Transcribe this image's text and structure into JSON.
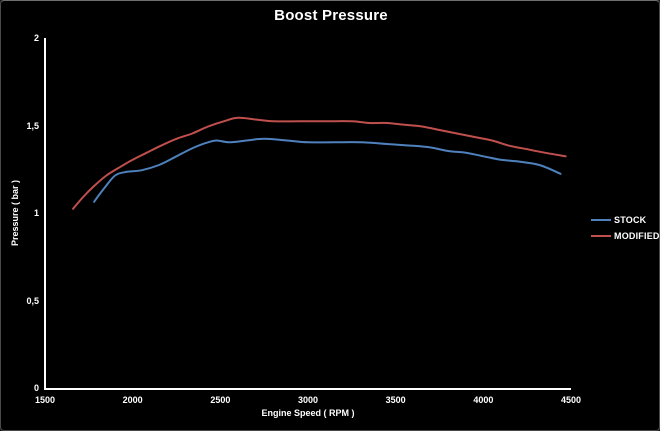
{
  "title": "Boost Pressure",
  "colors": {
    "background": "#000000",
    "text": "#ffffff",
    "axis": "#ffffff",
    "stock_line": "#4f81bd",
    "modified_line": "#c0504d"
  },
  "legend": {
    "items": [
      {
        "label": "STOCK",
        "color": "#4f81bd"
      },
      {
        "label": "MODIFIED",
        "color": "#c0504d"
      }
    ]
  },
  "chart_data": {
    "type": "line",
    "title": "Boost Pressure",
    "xlabel": "Engine Speed ( RPM )",
    "ylabel": "Pressure ( bar )",
    "x_range": [
      1500,
      4500
    ],
    "y_range": [
      0,
      2
    ],
    "grid": false,
    "legend_position": "right",
    "x_ticks": [
      {
        "value": 1500,
        "label": "1500"
      },
      {
        "value": 2000,
        "label": "2000"
      },
      {
        "value": 2500,
        "label": "2500"
      },
      {
        "value": 3000,
        "label": "3000"
      },
      {
        "value": 3500,
        "label": "3500"
      },
      {
        "value": 4000,
        "label": "4000"
      },
      {
        "value": 4500,
        "label": "4500"
      }
    ],
    "y_ticks": [
      {
        "value": 0,
        "label": "0"
      },
      {
        "value": 0.5,
        "label": "0,5"
      },
      {
        "value": 1,
        "label": "1"
      },
      {
        "value": 1.5,
        "label": "1,5"
      },
      {
        "value": 2,
        "label": "2"
      }
    ],
    "series": [
      {
        "name": "STOCK",
        "color": "#4f81bd",
        "points": [
          [
            1780,
            1.07
          ],
          [
            1840,
            1.15
          ],
          [
            1900,
            1.22
          ],
          [
            1960,
            1.24
          ],
          [
            2050,
            1.25
          ],
          [
            2150,
            1.28
          ],
          [
            2250,
            1.33
          ],
          [
            2350,
            1.38
          ],
          [
            2430,
            1.41
          ],
          [
            2480,
            1.42
          ],
          [
            2550,
            1.41
          ],
          [
            2650,
            1.42
          ],
          [
            2750,
            1.43
          ],
          [
            2880,
            1.42
          ],
          [
            3000,
            1.41
          ],
          [
            3150,
            1.41
          ],
          [
            3300,
            1.41
          ],
          [
            3450,
            1.4
          ],
          [
            3600,
            1.39
          ],
          [
            3700,
            1.38
          ],
          [
            3800,
            1.36
          ],
          [
            3900,
            1.35
          ],
          [
            4000,
            1.33
          ],
          [
            4100,
            1.31
          ],
          [
            4200,
            1.3
          ],
          [
            4320,
            1.28
          ],
          [
            4440,
            1.23
          ]
        ]
      },
      {
        "name": "MODIFIED",
        "color": "#c0504d",
        "points": [
          [
            1660,
            1.03
          ],
          [
            1720,
            1.1
          ],
          [
            1780,
            1.16
          ],
          [
            1850,
            1.22
          ],
          [
            1930,
            1.27
          ],
          [
            2000,
            1.31
          ],
          [
            2080,
            1.35
          ],
          [
            2160,
            1.39
          ],
          [
            2250,
            1.43
          ],
          [
            2340,
            1.46
          ],
          [
            2430,
            1.5
          ],
          [
            2520,
            1.53
          ],
          [
            2600,
            1.55
          ],
          [
            2700,
            1.54
          ],
          [
            2800,
            1.53
          ],
          [
            2950,
            1.53
          ],
          [
            3100,
            1.53
          ],
          [
            3250,
            1.53
          ],
          [
            3350,
            1.52
          ],
          [
            3450,
            1.52
          ],
          [
            3550,
            1.51
          ],
          [
            3650,
            1.5
          ],
          [
            3750,
            1.48
          ],
          [
            3850,
            1.46
          ],
          [
            3950,
            1.44
          ],
          [
            4050,
            1.42
          ],
          [
            4150,
            1.39
          ],
          [
            4250,
            1.37
          ],
          [
            4350,
            1.35
          ],
          [
            4470,
            1.33
          ]
        ]
      }
    ]
  }
}
